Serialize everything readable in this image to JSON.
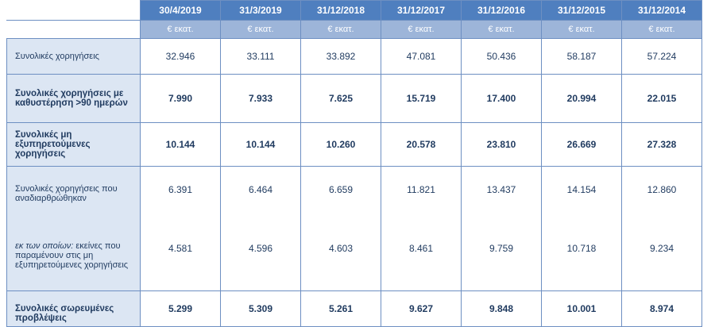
{
  "table": {
    "columns": [
      "30/4/2019",
      "31/3/2019",
      "31/12/2018",
      "31/12/2017",
      "31/12/2016",
      "31/12/2015",
      "31/12/2014"
    ],
    "unit": "€ εκατ.",
    "rows": [
      {
        "label": "Συνολικές χορηγήσεις",
        "values": [
          "32.946",
          "33.111",
          "33.892",
          "47.081",
          "50.436",
          "58.187",
          "57.224"
        ]
      },
      {
        "label": "Συνολικές χορηγήσεις με καθυστέρηση >90 ημερών",
        "values": [
          "7.990",
          "7.933",
          "7.625",
          "15.719",
          "17.400",
          "20.994",
          "22.015"
        ]
      },
      {
        "label": "Συνολικές μη εξυπηρετούμενες χορηγήσεις",
        "values": [
          "10.144",
          "10.144",
          "10.260",
          "20.578",
          "23.810",
          "26.669",
          "27.328"
        ]
      },
      {
        "label": "Συνολικές χορηγήσεις που αναδιαρθρώθηκαν",
        "values": [
          "6.391",
          "6.464",
          "6.659",
          "11.821",
          "13.437",
          "14.154",
          "12.860"
        ]
      },
      {
        "label_prefix": "εκ των οποίων:",
        "label_rest": "εκείνες που παραμένουν στις μη εξυπηρετούμενες χορηγήσεις",
        "values": [
          "4.581",
          "4.596",
          "4.603",
          "8.461",
          "9.759",
          "10.718",
          "9.234"
        ]
      },
      {
        "label": "Συνολικές σωρευμένες προβλέψεις",
        "values": [
          "5.299",
          "5.309",
          "5.261",
          "9.627",
          "9.848",
          "10.001",
          "8.974"
        ]
      }
    ]
  }
}
